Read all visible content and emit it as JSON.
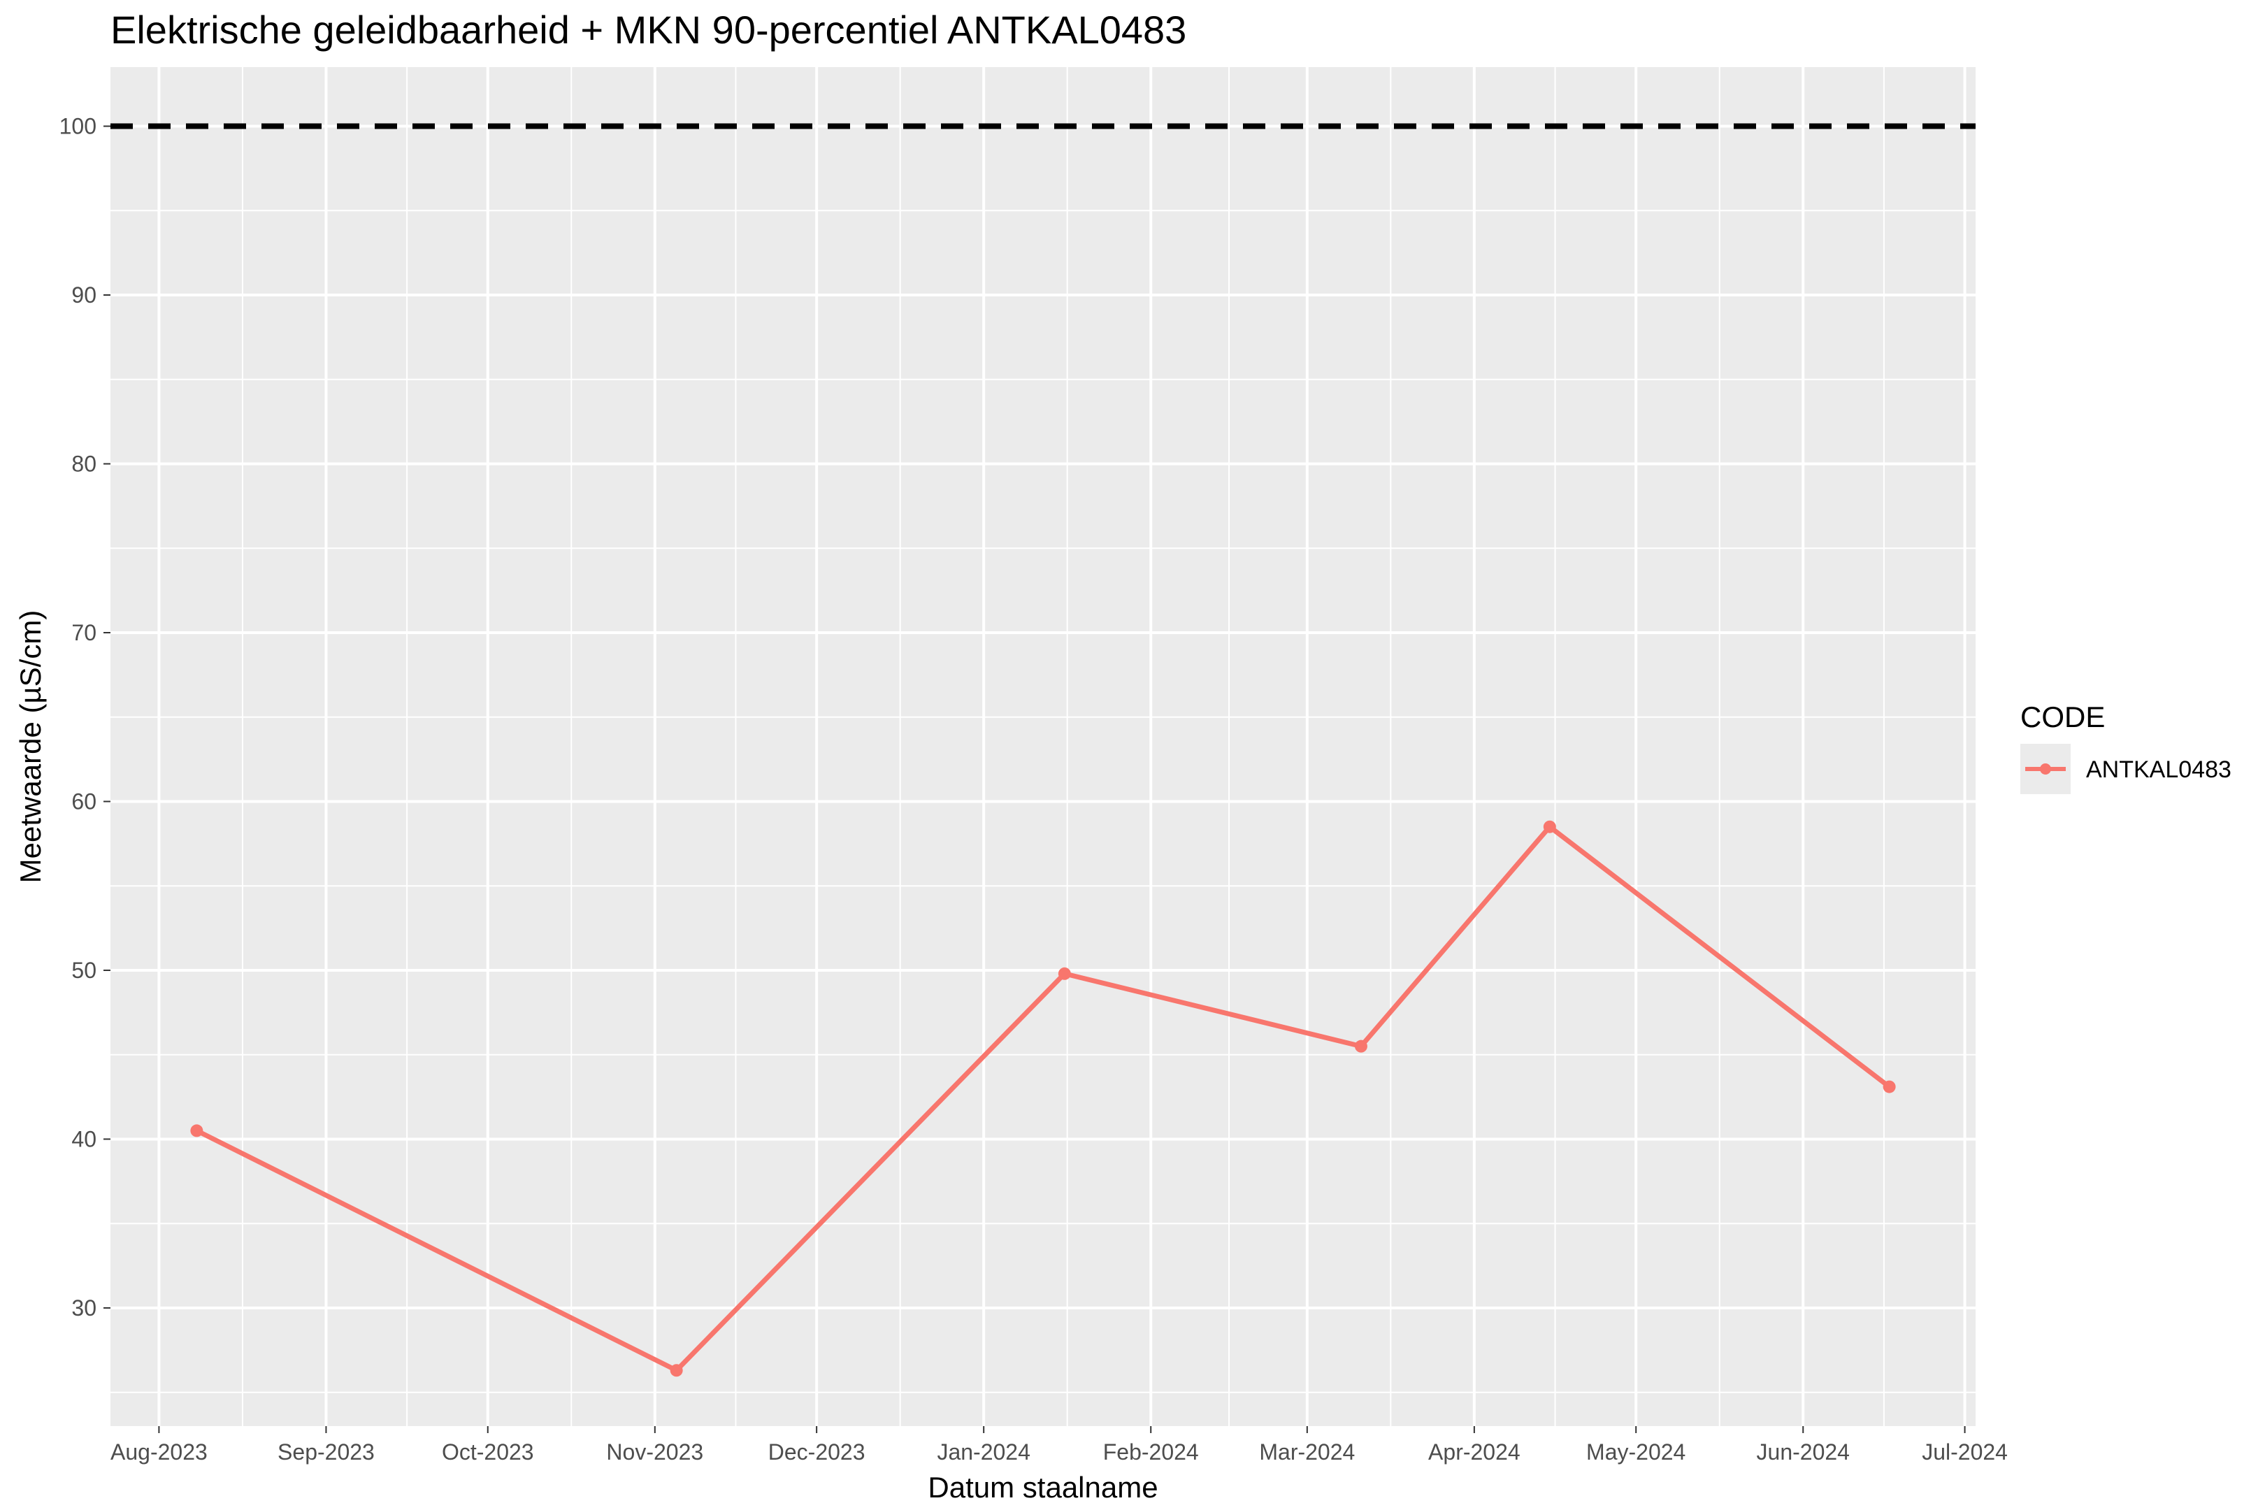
{
  "chart_data": {
    "type": "line",
    "title": "Elektrische geleidbaarheid + MKN 90-percentiel ANTKAL0483",
    "xlabel": "Datum staalname",
    "ylabel": "Meetwaarde (µS/cm)",
    "xlim": [
      "2023-07-23",
      "2024-07-03"
    ],
    "ylim": [
      23,
      103.5
    ],
    "x_ticks": [
      {
        "date": "2023-08-01",
        "label": "Aug-2023"
      },
      {
        "date": "2023-09-01",
        "label": "Sep-2023"
      },
      {
        "date": "2023-10-01",
        "label": "Oct-2023"
      },
      {
        "date": "2023-11-01",
        "label": "Nov-2023"
      },
      {
        "date": "2023-12-01",
        "label": "Dec-2023"
      },
      {
        "date": "2024-01-01",
        "label": "Jan-2024"
      },
      {
        "date": "2024-02-01",
        "label": "Feb-2024"
      },
      {
        "date": "2024-03-01",
        "label": "Mar-2024"
      },
      {
        "date": "2024-04-01",
        "label": "Apr-2024"
      },
      {
        "date": "2024-05-01",
        "label": "May-2024"
      },
      {
        "date": "2024-06-01",
        "label": "Jun-2024"
      },
      {
        "date": "2024-07-01",
        "label": "Jul-2024"
      }
    ],
    "y_ticks": [
      30,
      40,
      50,
      60,
      70,
      80,
      90,
      100
    ],
    "series": [
      {
        "name": "ANTKAL0483",
        "color": "#F8766D",
        "points": [
          {
            "x": "2023-08-08",
            "y": 40.5
          },
          {
            "x": "2023-11-05",
            "y": 26.3
          },
          {
            "x": "2024-01-16",
            "y": 49.8
          },
          {
            "x": "2024-03-11",
            "y": 45.5
          },
          {
            "x": "2024-04-15",
            "y": 58.5
          },
          {
            "x": "2024-06-17",
            "y": 43.1
          }
        ]
      }
    ],
    "reference_line": {
      "y": 100,
      "style": "dashed",
      "color": "#000000"
    },
    "legend": {
      "title": "CODE",
      "position": "right"
    },
    "grid": true,
    "panel_background": "#EBEBEB"
  }
}
